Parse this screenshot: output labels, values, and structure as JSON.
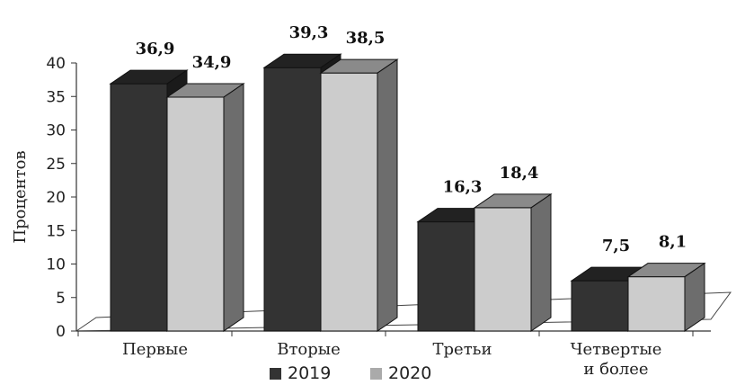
{
  "chart_data": {
    "type": "bar",
    "ylabel": "Процентов",
    "ylim": [
      0,
      40
    ],
    "yticks": [
      "0",
      "5",
      "10",
      "15",
      "20",
      "25",
      "30",
      "35",
      "40"
    ],
    "categories": [
      [
        "Первые"
      ],
      [
        "Вторые"
      ],
      [
        "Третьи"
      ],
      [
        "Четвертые",
        "и более"
      ]
    ],
    "series": [
      {
        "name": "2019",
        "values": [
          36.9,
          39.3,
          16.3,
          7.5
        ],
        "labels": [
          "36,9",
          "39,3",
          "16,3",
          "7,5"
        ],
        "color": "#333333"
      },
      {
        "name": "2020",
        "values": [
          34.9,
          38.5,
          18.4,
          8.1
        ],
        "labels": [
          "34,9",
          "38,5",
          "18,4",
          "8,1"
        ],
        "color": "#cccccc"
      }
    ],
    "grid": false,
    "legend_position": "bottom"
  }
}
